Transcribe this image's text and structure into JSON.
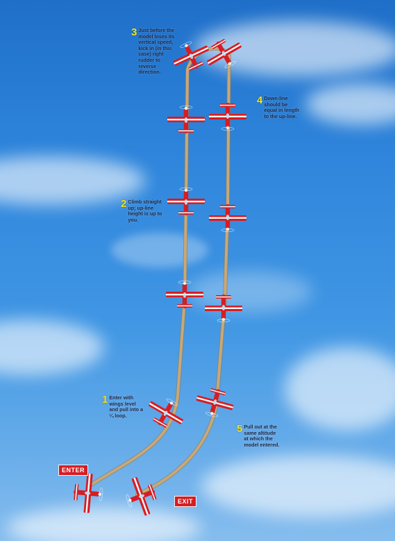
{
  "colors": {
    "plane_red": "#d61d23",
    "plane_white": "#f5f5f5",
    "smoke_trail": "#c8a878",
    "step_number": "#f2e21a",
    "step_text": "#1b2440",
    "sky_top": "#1f6fc9",
    "sky_bottom": "#86bdee"
  },
  "labels": {
    "enter": "ENTER",
    "exit": "EXIT"
  },
  "steps": [
    {
      "number": "1",
      "text": "Enter with wings level and pull into a ¼ loop."
    },
    {
      "number": "2",
      "text": "Climb straight up; up-line height is up to you."
    },
    {
      "number": "3",
      "text": "Just before the model loses its vertical speed, kick in (in this case) right rudder to reverse direction."
    },
    {
      "number": "4",
      "text": "Down-line should be equal in length to the up-line."
    },
    {
      "number": "5",
      "text": "Pull out at the same altitude at which the model entered."
    }
  ],
  "icons": [
    "airplane-icon",
    "smoke-trail",
    "cloud"
  ]
}
